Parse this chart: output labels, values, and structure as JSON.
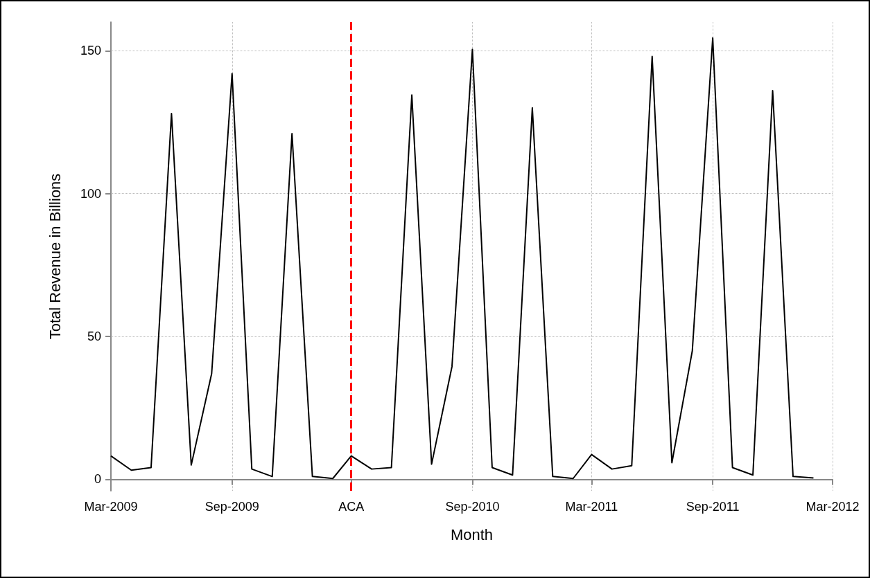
{
  "chart_data": {
    "type": "line",
    "xlabel": "Month",
    "ylabel": "Total Revenue in Billions",
    "x": [
      "2009-03",
      "2009-04",
      "2009-05",
      "2009-06",
      "2009-07",
      "2009-08",
      "2009-09",
      "2009-10",
      "2009-11",
      "2009-12",
      "2010-01",
      "2010-02",
      "2010-03",
      "2010-04",
      "2010-05",
      "2010-06",
      "2010-07",
      "2010-08",
      "2010-09",
      "2010-10",
      "2010-11",
      "2010-12",
      "2011-01",
      "2011-02",
      "2011-03",
      "2011-04",
      "2011-05",
      "2011-06",
      "2011-07",
      "2011-08",
      "2011-09",
      "2011-10",
      "2011-11",
      "2011-12",
      "2012-01",
      "2012-02"
    ],
    "series": [
      {
        "color": "#000000",
        "values": [
          8.2,
          3.2,
          4.1,
          128,
          5,
          37,
          142,
          3.6,
          1,
          121,
          1,
          0.3,
          8.2,
          3.6,
          4.1,
          134.5,
          5.3,
          39.5,
          150.5,
          4.1,
          1.5,
          130,
          1,
          0.3,
          8.7,
          3.6,
          4.8,
          148,
          5.8,
          45,
          154.5,
          4.1,
          1.5,
          136,
          1,
          0.5
        ]
      }
    ],
    "xlim": [
      "2009-03",
      "2012-03"
    ],
    "xticks": [
      {
        "value": "2009-03",
        "label": "Mar-2009"
      },
      {
        "value": "2009-09",
        "label": "Sep-2009"
      },
      {
        "value": "2010-03",
        "label": "ACA"
      },
      {
        "value": "2010-09",
        "label": "Sep-2010"
      },
      {
        "value": "2011-03",
        "label": "Mar-2011"
      },
      {
        "value": "2011-09",
        "label": "Sep-2011"
      },
      {
        "value": "2012-03",
        "label": "Mar-2012"
      }
    ],
    "ylim": [
      -4,
      160
    ],
    "yticks": [
      0,
      50,
      100,
      150
    ],
    "ref_lines": [
      {
        "axis": "x",
        "value": "2010-03",
        "color": "#ff0000",
        "line_style": "dashed"
      }
    ],
    "grid": true,
    "marker": "none",
    "line_style": "solid"
  }
}
